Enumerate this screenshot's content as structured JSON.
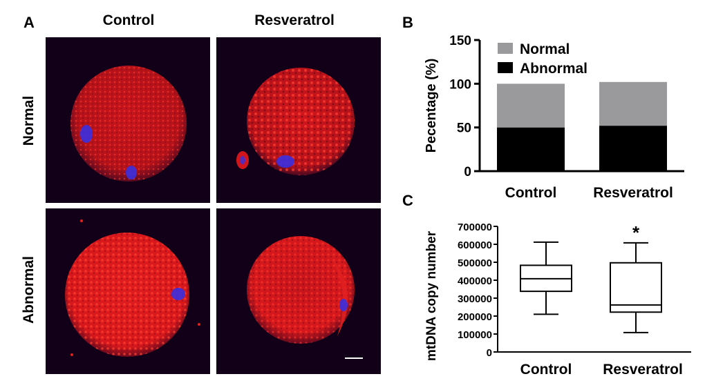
{
  "panel_a": {
    "letter": "A",
    "columns": [
      "Control",
      "Resveratrol"
    ],
    "rows": [
      "Normal",
      "Abnormal"
    ]
  },
  "panel_b": {
    "letter": "B"
  },
  "panel_c": {
    "letter": "C"
  },
  "colors": {
    "normal": "#9a9a9d",
    "abnormal": "#000000",
    "cytoplasm": "#e0201e",
    "dna": "#3a30e0",
    "background": "#120018"
  },
  "chart_data": [
    {
      "type": "bar",
      "stacked": true,
      "categories": [
        "Control",
        "Resveratrol"
      ],
      "series": [
        {
          "name": "Abnormal",
          "values": [
            50,
            52
          ]
        },
        {
          "name": "Normal",
          "values": [
            50,
            50
          ]
        }
      ],
      "ylabel": "Pecentage (%)",
      "ylim": [
        0,
        150
      ],
      "yticks": [
        "0",
        "50",
        "100",
        "150"
      ],
      "legend": "top-left"
    },
    {
      "type": "box",
      "categories": [
        "Control",
        "Resveratrol"
      ],
      "boxes": [
        {
          "min": 210000,
          "q1": 338000,
          "median": 408000,
          "q3": 483000,
          "max": 612000
        },
        {
          "min": 108000,
          "q1": 222000,
          "median": 262000,
          "q3": 497000,
          "max": 608000
        }
      ],
      "annotations": [
        "",
        "*"
      ],
      "ylabel": "mtDNA copy number",
      "ylim": [
        0,
        700000
      ],
      "yticks": [
        "0",
        "100000",
        "200000",
        "300000",
        "400000",
        "500000",
        "600000",
        "700000"
      ]
    }
  ]
}
